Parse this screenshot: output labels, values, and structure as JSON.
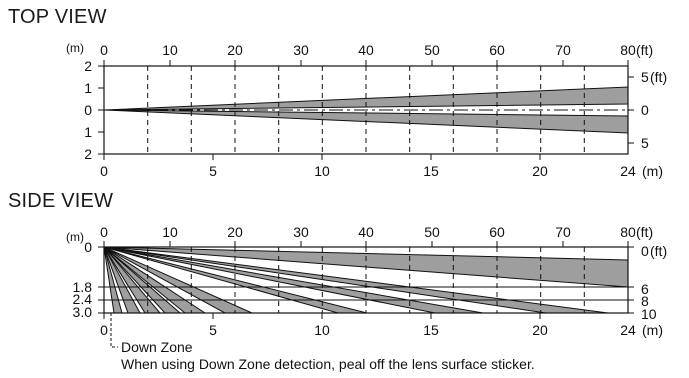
{
  "top_view": {
    "title": "TOP VIEW",
    "unit_m": "(m)",
    "unit_ft": "(ft)",
    "unit_m_bottom": "(m)",
    "ft_top_ticks": [
      "0",
      "10",
      "20",
      "30",
      "40",
      "50",
      "60",
      "70",
      "80"
    ],
    "m_bottom_ticks": [
      "0",
      "5",
      "10",
      "15",
      "20",
      "24"
    ],
    "left_ticks": [
      "2",
      "1",
      "0",
      "1",
      "2"
    ],
    "right_ticks": [
      "5",
      "0",
      "5"
    ]
  },
  "side_view": {
    "title": "SIDE VIEW",
    "unit_m": "(m)",
    "unit_ft": "(ft)",
    "unit_m_bottom": "(m)",
    "ft_top_ticks": [
      "0",
      "10",
      "20",
      "30",
      "40",
      "50",
      "60",
      "70",
      "80"
    ],
    "m_bottom_ticks": [
      "0",
      "5",
      "10",
      "15",
      "20",
      "24"
    ],
    "left_ticks": [
      "0",
      "1.8",
      "2.4",
      "3.0"
    ],
    "right_ticks": [
      "0",
      "6",
      "8",
      "10"
    ],
    "down_zone_label": "Down Zone"
  },
  "note": "When using Down Zone detection, peal off the lens surface sticker.",
  "colors": {
    "beam_fill": "#9e9e9e",
    "line": "#111111",
    "background": "#ffffff"
  }
}
